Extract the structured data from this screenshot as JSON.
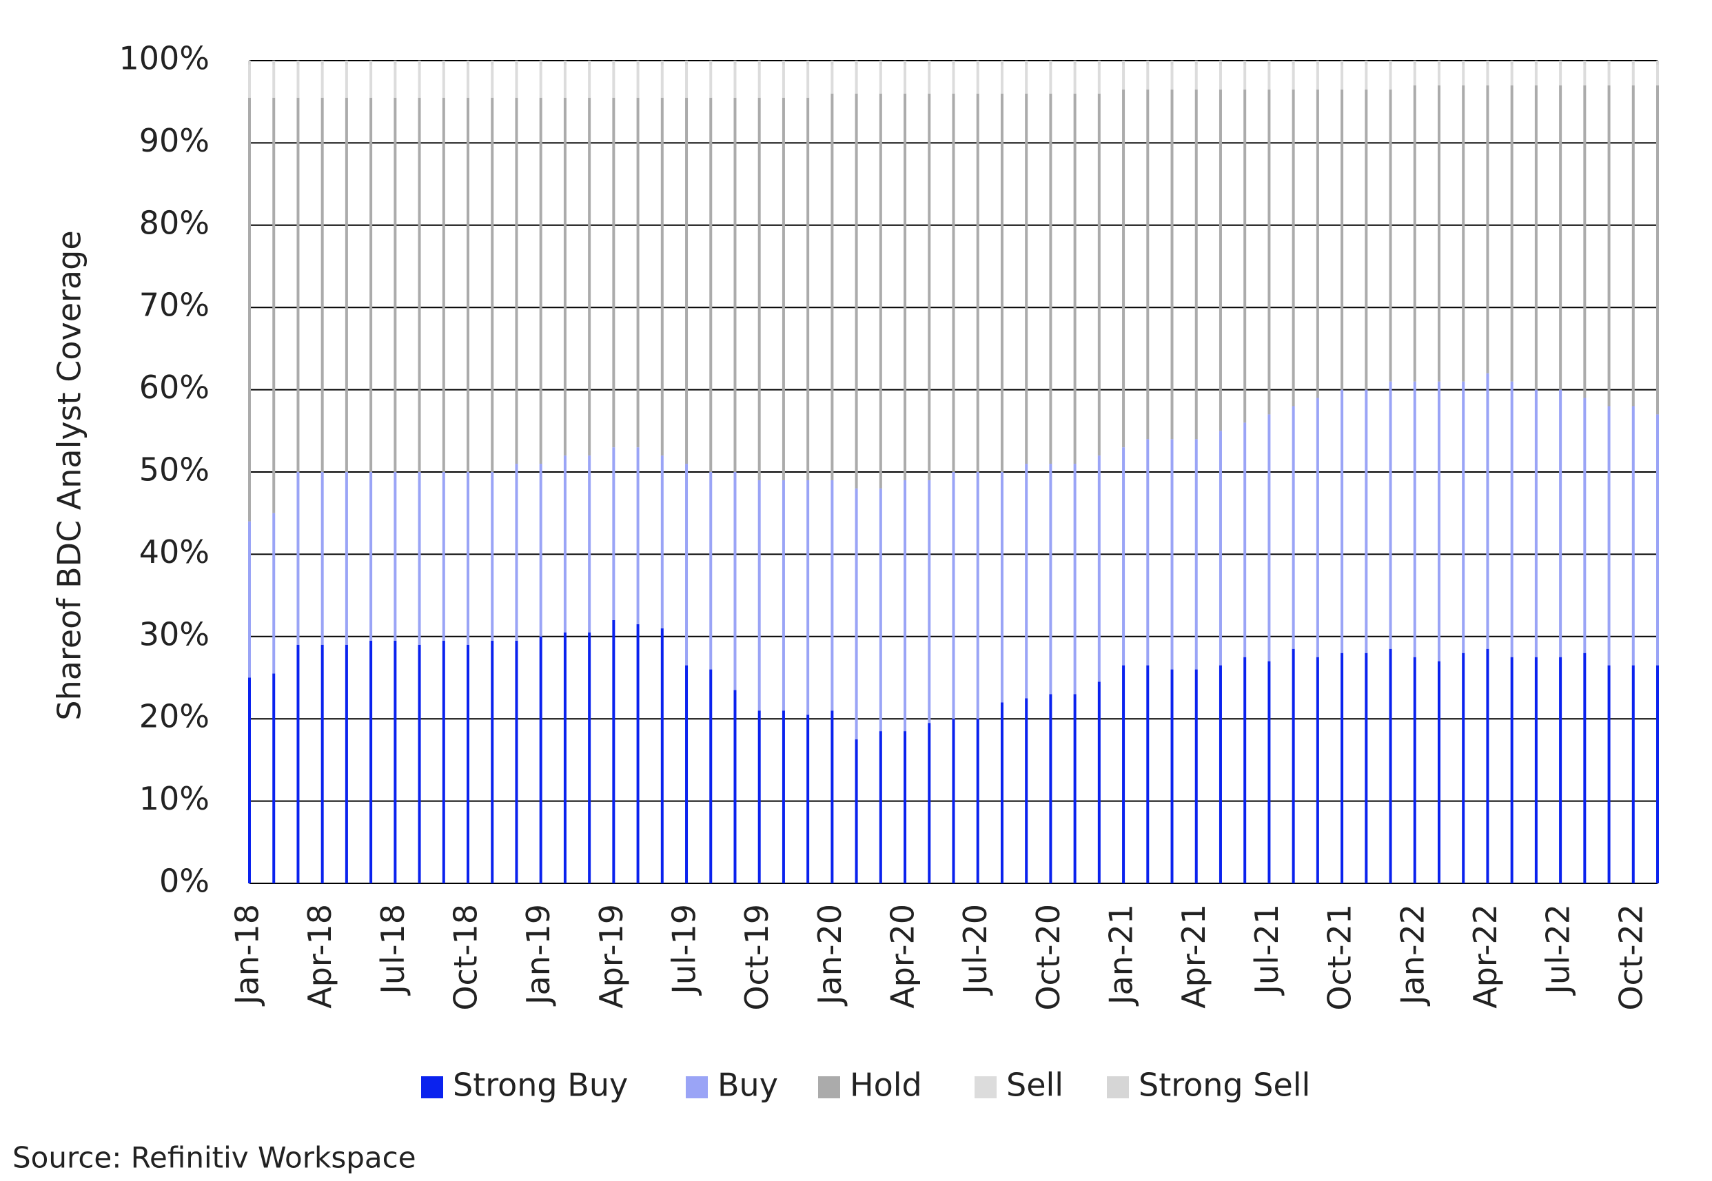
{
  "chart_data": {
    "type": "stacked_bar",
    "y_label": "Shareof BDC Analyst Coverage",
    "source": "Source: Refinitiv Workspace",
    "categories": [
      "Jan-18",
      null,
      null,
      "Apr-18",
      null,
      null,
      "Jul-18",
      null,
      null,
      "Oct-18",
      null,
      null,
      "Jan-19",
      null,
      null,
      "Apr-19",
      null,
      null,
      "Jul-19",
      null,
      null,
      "Oct-19",
      null,
      null,
      "Jan-20",
      null,
      null,
      "Apr-20",
      null,
      null,
      "Jul-20",
      null,
      null,
      "Oct-20",
      null,
      null,
      "Jan-21",
      null,
      null,
      "Apr-21",
      null,
      null,
      "Jul-21",
      null,
      null,
      "Oct-21",
      null,
      null,
      "Jan-22",
      null,
      null,
      "Apr-22",
      null,
      null,
      "Jul-22",
      null,
      null,
      "Oct-22",
      null
    ],
    "series": [
      {
        "name": "Strong Buy",
        "color": "#0a22ee",
        "values": [
          25,
          25.5,
          29,
          29,
          29,
          29.5,
          29.5,
          29,
          29.5,
          29,
          29.5,
          29.5,
          30,
          30.5,
          30.5,
          32,
          31.5,
          31,
          26.5,
          26,
          23.5,
          21,
          21,
          20.5,
          21,
          17.5,
          18.5,
          18.5,
          19.5,
          20,
          20,
          22,
          22.5,
          23,
          23,
          24.5,
          26.5,
          26.5,
          26,
          26,
          26.5,
          27.5,
          27,
          28.5,
          27.5,
          28,
          28,
          28.5,
          27.5,
          27,
          28,
          28.5,
          27.5,
          27.5,
          27.5,
          28,
          26.5,
          26.5,
          26.5
        ]
      },
      {
        "name": "Buy",
        "color": "#9aa4f6",
        "values": [
          19,
          19.5,
          21,
          21,
          21,
          20.5,
          20.5,
          21,
          20.5,
          21,
          20.5,
          21.5,
          21,
          21.5,
          21.5,
          21,
          21.5,
          21,
          24.5,
          24,
          26.5,
          28,
          28,
          28.5,
          28,
          30.5,
          29.5,
          30.5,
          29.5,
          30,
          30,
          28,
          28.5,
          28,
          28,
          27.5,
          26.5,
          27.5,
          28,
          28,
          28.5,
          28.5,
          30,
          29.5,
          31.5,
          32,
          32,
          32.5,
          33.5,
          34,
          33,
          33.5,
          33.5,
          32.5,
          32.5,
          31,
          31.5,
          31.5,
          30.5
        ]
      },
      {
        "name": "Hold",
        "color": "#ababab",
        "values": [
          51.5,
          50.5,
          45.5,
          45.5,
          45.5,
          45.5,
          45.5,
          45.5,
          45.5,
          45.5,
          45.5,
          44.5,
          44.5,
          43.5,
          43.5,
          42.5,
          42.5,
          43.5,
          44.5,
          45.5,
          45.5,
          46.5,
          46.5,
          46.5,
          47,
          48,
          48,
          47,
          47,
          46,
          46,
          46,
          45,
          45,
          45,
          44,
          43.5,
          42.5,
          42.5,
          42.5,
          41.5,
          40.5,
          39.5,
          38.5,
          37.5,
          36.5,
          36.5,
          35.5,
          36,
          36,
          36,
          35,
          36,
          37,
          37,
          38,
          39,
          39,
          40
        ]
      },
      {
        "name": "Sell",
        "color": "#dcdcdc",
        "values": [
          4,
          4,
          4,
          4,
          4,
          4,
          4,
          4,
          4,
          4,
          4,
          4,
          4,
          4,
          4,
          4,
          4,
          4,
          4,
          4,
          4,
          4,
          4,
          4,
          3.5,
          3.5,
          3.5,
          3.5,
          3.5,
          3.5,
          3.5,
          3.5,
          3.5,
          3.5,
          3.5,
          3.5,
          3,
          3,
          3,
          3,
          3,
          3,
          3,
          3,
          3,
          3,
          3,
          3,
          2.5,
          2.5,
          2.5,
          2.5,
          2.5,
          2.5,
          2.5,
          2.5,
          2.5,
          2.5,
          2.5
        ]
      },
      {
        "name": "Strong Sell",
        "color": "#d6d6d6",
        "values": [
          0.5,
          0.5,
          0.5,
          0.5,
          0.5,
          0.5,
          0.5,
          0.5,
          0.5,
          0.5,
          0.5,
          0.5,
          0.5,
          0.5,
          0.5,
          0.5,
          0.5,
          0.5,
          0.5,
          0.5,
          0.5,
          0.5,
          0.5,
          0.5,
          0.5,
          0.5,
          0.5,
          0.5,
          0.5,
          0.5,
          0.5,
          0.5,
          0.5,
          0.5,
          0.5,
          0.5,
          0.5,
          0.5,
          0.5,
          0.5,
          0.5,
          0.5,
          0.5,
          0.5,
          0.5,
          0.5,
          0.5,
          0.5,
          0.5,
          0.5,
          0.5,
          0.5,
          0.5,
          0.5,
          0.5,
          0.5,
          0.5,
          0.5,
          0.5
        ]
      }
    ],
    "ylim": [
      0,
      100
    ],
    "yticks": [
      {
        "value": 0,
        "label": "0%"
      },
      {
        "value": 10,
        "label": "10%"
      },
      {
        "value": 20,
        "label": "20%"
      },
      {
        "value": 30,
        "label": "30%"
      },
      {
        "value": 40,
        "label": "40%"
      },
      {
        "value": 50,
        "label": "50%"
      },
      {
        "value": 60,
        "label": "60%"
      },
      {
        "value": 70,
        "label": "70%"
      },
      {
        "value": 80,
        "label": "80%"
      },
      {
        "value": 90,
        "label": "90%"
      },
      {
        "value": 100,
        "label": "100%"
      }
    ],
    "grid": true,
    "legend": "bottom"
  }
}
